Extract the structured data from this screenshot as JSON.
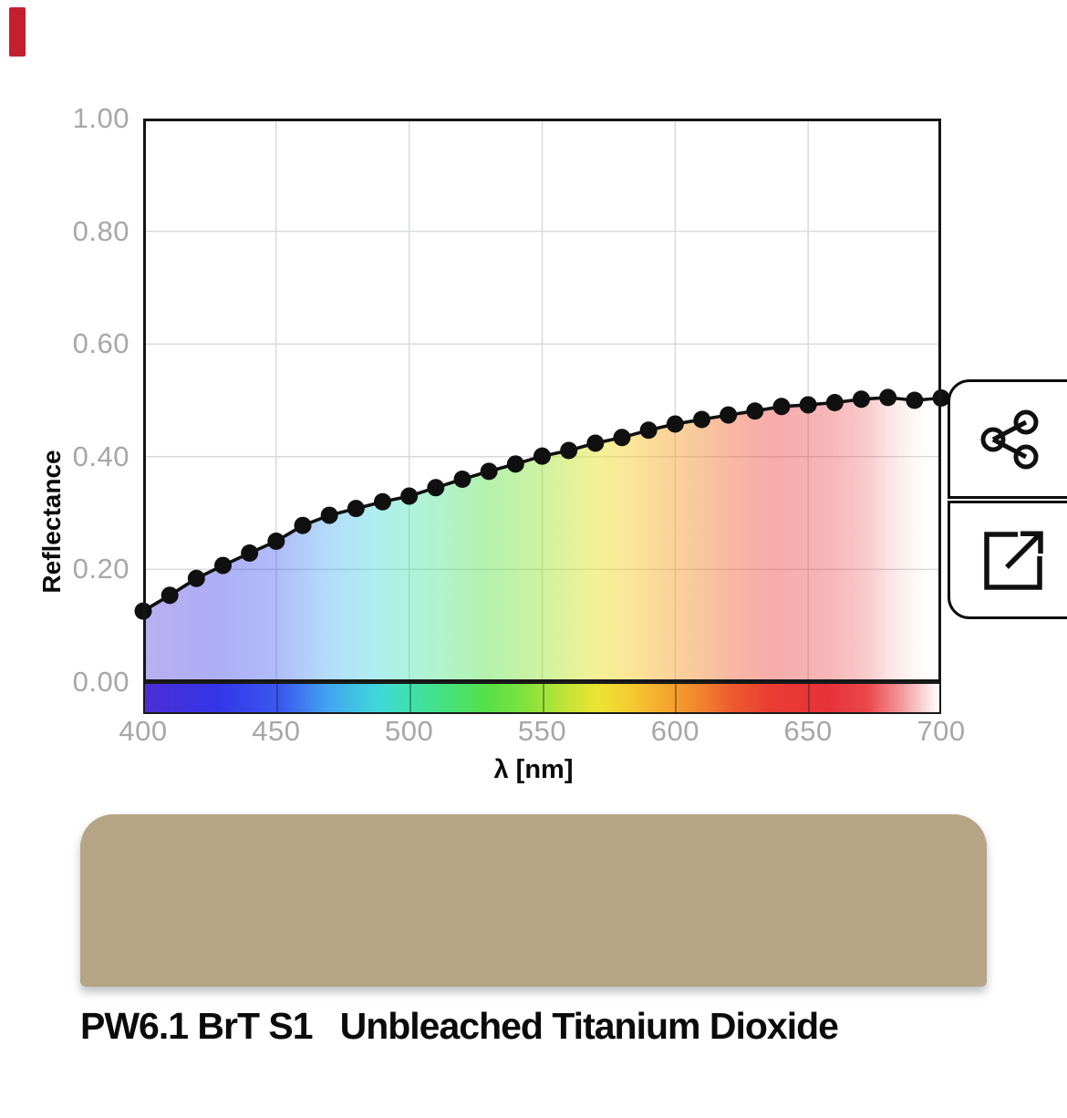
{
  "marker": {
    "color": "#c3202d"
  },
  "chart_data": {
    "type": "line",
    "title": "",
    "xlabel": "λ [nm]",
    "ylabel": "Reflectance",
    "x": [
      400,
      410,
      420,
      430,
      440,
      450,
      460,
      470,
      480,
      490,
      500,
      510,
      520,
      530,
      540,
      550,
      560,
      570,
      580,
      590,
      600,
      610,
      620,
      630,
      640,
      650,
      660,
      670,
      680,
      690,
      700
    ],
    "values": [
      0.126,
      0.154,
      0.184,
      0.207,
      0.229,
      0.25,
      0.278,
      0.296,
      0.308,
      0.32,
      0.33,
      0.345,
      0.36,
      0.374,
      0.387,
      0.401,
      0.411,
      0.424,
      0.434,
      0.447,
      0.458,
      0.466,
      0.474,
      0.481,
      0.489,
      0.492,
      0.496,
      0.502,
      0.505,
      0.5,
      0.504
    ],
    "xlim": [
      400,
      700
    ],
    "ylim": [
      0,
      1
    ],
    "x_ticks": [
      "400",
      "450",
      "500",
      "550",
      "600",
      "650",
      "700"
    ],
    "y_ticks": [
      "1.00",
      "0.80",
      "0.60",
      "0.40",
      "0.20",
      "0.00"
    ],
    "grid": true,
    "legend": "none",
    "line_color": "#101010",
    "point_color": "#101010",
    "fill": "spectral gradient under curve"
  },
  "actions": {
    "share_icon": "share-nodes",
    "export_icon": "open-external"
  },
  "swatch": {
    "color": "#b5a586"
  },
  "pigment": {
    "code": "PW6.1 BrT S1",
    "name": "Unbleached Titanium Dioxide"
  }
}
